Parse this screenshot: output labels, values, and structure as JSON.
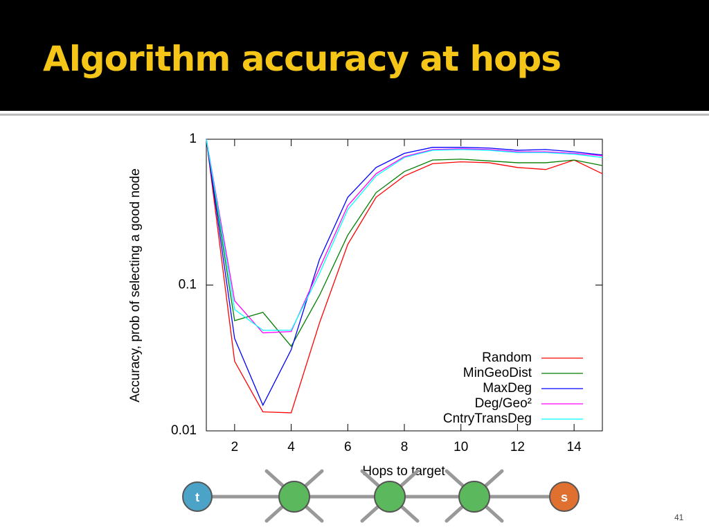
{
  "title": "Algorithm accuracy at hops",
  "page_number": "41",
  "diagram": {
    "nodes": [
      "t",
      "s"
    ]
  },
  "chart_data": {
    "type": "line",
    "xlabel": "Hops to target",
    "ylabel": "Accuracy, prob of selecting a good node",
    "x": [
      1,
      2,
      3,
      4,
      5,
      6,
      7,
      8,
      9,
      10,
      11,
      12,
      13,
      14,
      15
    ],
    "xlim": [
      1,
      15
    ],
    "xticks": [
      2,
      4,
      6,
      8,
      10,
      12,
      14
    ],
    "ylim": [
      0.01,
      1
    ],
    "yticks": [
      {
        "value": 0.01,
        "label": "0.01"
      },
      {
        "value": 0.1,
        "label": "0.1"
      },
      1
    ],
    "log_y": true,
    "grid": false,
    "legend": "lower right",
    "series": [
      {
        "name": "Random",
        "color": "#ff0000",
        "values": [
          1,
          0.03,
          0.0135,
          0.0133,
          0.055,
          0.19,
          0.4,
          0.56,
          0.68,
          0.7,
          0.69,
          0.64,
          0.62,
          0.72,
          0.58
        ]
      },
      {
        "name": "MinGeoDist",
        "color": "#007f00",
        "values": [
          1,
          0.057,
          0.065,
          0.038,
          0.085,
          0.22,
          0.43,
          0.6,
          0.72,
          0.73,
          0.71,
          0.69,
          0.69,
          0.72,
          0.66
        ]
      },
      {
        "name": "MaxDeg",
        "color": "#0000ff",
        "values": [
          1,
          0.043,
          0.015,
          0.036,
          0.15,
          0.4,
          0.64,
          0.8,
          0.88,
          0.88,
          0.87,
          0.84,
          0.85,
          0.82,
          0.78
        ]
      },
      {
        "name": "Deg/Geo²",
        "color": "#ff00ff",
        "values": [
          1,
          0.078,
          0.047,
          0.048,
          0.13,
          0.35,
          0.58,
          0.76,
          0.85,
          0.86,
          0.85,
          0.82,
          0.82,
          0.8,
          0.77
        ]
      },
      {
        "name": "CntryTransDeg",
        "color": "#00ffff",
        "values": [
          1,
          0.068,
          0.049,
          0.049,
          0.12,
          0.33,
          0.56,
          0.75,
          0.84,
          0.85,
          0.84,
          0.81,
          0.81,
          0.79,
          0.75
        ]
      }
    ]
  }
}
